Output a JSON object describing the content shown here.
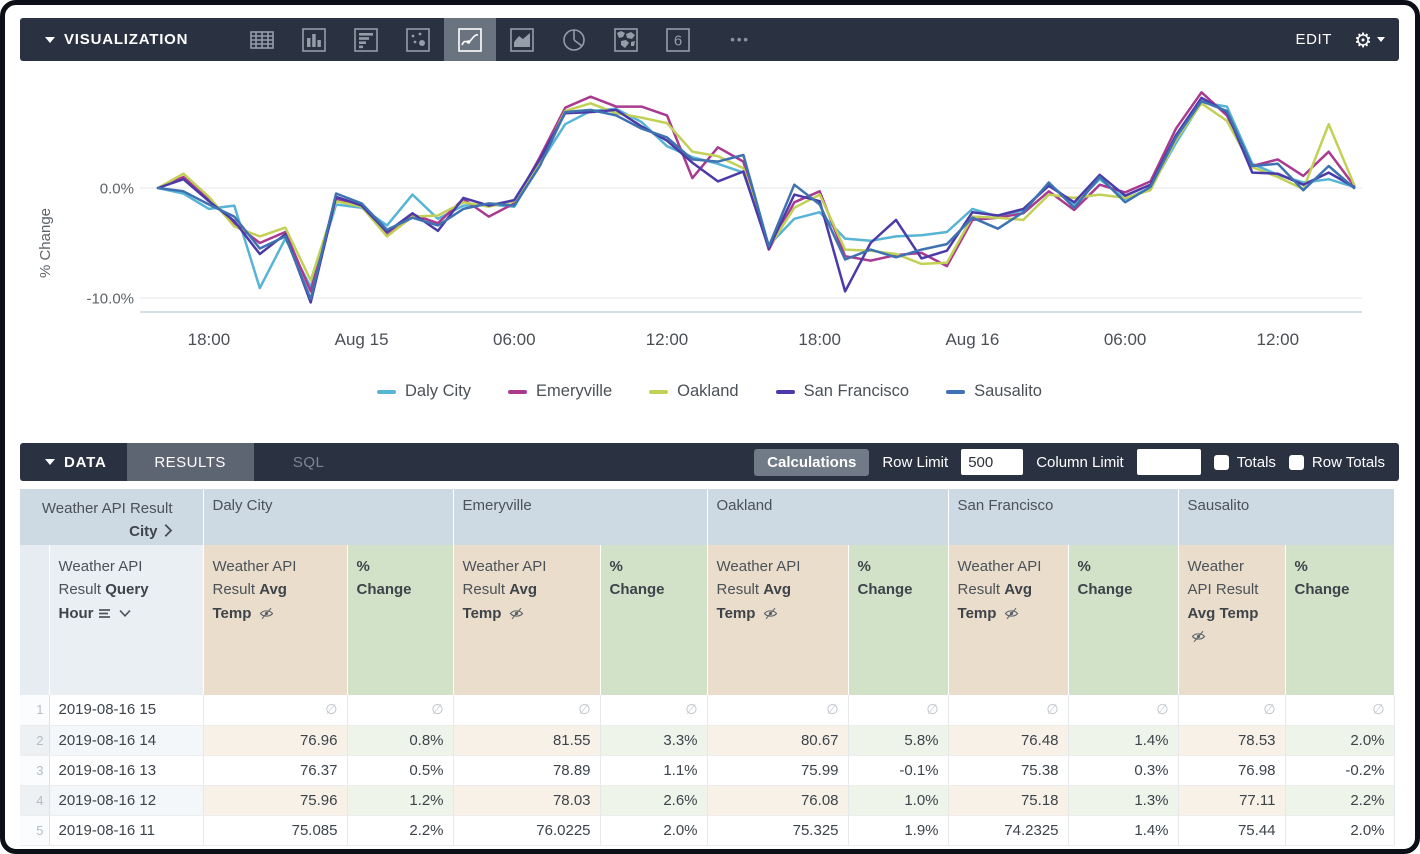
{
  "visualization_bar": {
    "title": "VISUALIZATION",
    "icons": [
      {
        "name": "table",
        "selected": false
      },
      {
        "name": "column",
        "selected": false
      },
      {
        "name": "bar",
        "selected": false
      },
      {
        "name": "scatter",
        "selected": false
      },
      {
        "name": "line",
        "selected": true
      },
      {
        "name": "area",
        "selected": false
      },
      {
        "name": "pie",
        "selected": false
      },
      {
        "name": "map",
        "selected": false
      },
      {
        "name": "single-value",
        "selected": false,
        "glyph": "6"
      }
    ],
    "more_label": "•••",
    "edit_label": "EDIT"
  },
  "chart_data": {
    "type": "line",
    "ylabel": "% Change",
    "ylim": [
      -11.5,
      9.5
    ],
    "grid": "horizontal",
    "legend_position": "bottom",
    "yticks": [
      {
        "value": 0,
        "label": "0.0%"
      },
      {
        "value": -10,
        "label": "-10.0%"
      }
    ],
    "xticks": [
      {
        "index": 2,
        "label": "18:00"
      },
      {
        "index": 8,
        "label": "Aug 15"
      },
      {
        "index": 14,
        "label": "06:00"
      },
      {
        "index": 20,
        "label": "12:00"
      },
      {
        "index": 26,
        "label": "18:00"
      },
      {
        "index": 32,
        "label": "Aug 16"
      },
      {
        "index": 38,
        "label": "06:00"
      },
      {
        "index": 44,
        "label": "12:00"
      }
    ],
    "series": [
      {
        "name": "Daly City",
        "color": "#57b4d4",
        "values": [
          0.0,
          -0.5,
          -1.9,
          -1.6,
          -9.1,
          -4.6,
          -9.0,
          -1.5,
          -1.8,
          -3.4,
          -0.6,
          -2.8,
          -1.6,
          -1.5,
          -1.7,
          2.2,
          5.8,
          7.0,
          7.2,
          6.0,
          3.8,
          2.8,
          2.2,
          1.4,
          -5.2,
          -2.8,
          -2.2,
          -4.6,
          -4.8,
          -4.4,
          -4.3,
          -4.0,
          -1.9,
          -2.6,
          -2.0,
          0.4,
          -1.5,
          0.8,
          -1.0,
          0.0,
          4.1,
          7.8,
          7.4,
          2.2,
          1.2,
          0.5,
          0.8,
          0.1
        ]
      },
      {
        "name": "Emeryville",
        "color": "#a93a90",
        "values": [
          0.0,
          1.0,
          -1.0,
          -3.2,
          -5.0,
          -4.0,
          -9.4,
          -1.0,
          -1.5,
          -4.3,
          -2.4,
          -3.2,
          -1.0,
          -2.6,
          -1.4,
          2.8,
          7.3,
          8.3,
          7.4,
          7.4,
          6.6,
          0.9,
          3.7,
          2.4,
          -5.6,
          -1.3,
          -0.3,
          -6.2,
          -6.6,
          -6.1,
          -5.9,
          -7.1,
          -2.9,
          -2.7,
          -2.3,
          -0.3,
          -2.0,
          0.3,
          -0.4,
          0.6,
          5.4,
          8.7,
          6.6,
          2.0,
          2.6,
          1.1,
          3.3,
          0.2
        ]
      },
      {
        "name": "Oakland",
        "color": "#c2d156",
        "values": [
          0.0,
          1.3,
          -0.8,
          -3.5,
          -4.4,
          -3.6,
          -8.4,
          -1.2,
          -1.7,
          -4.4,
          -2.6,
          -2.5,
          -1.3,
          -1.7,
          -1.2,
          2.4,
          7.0,
          7.7,
          6.8,
          6.4,
          5.9,
          3.3,
          2.9,
          1.8,
          -5.4,
          -1.8,
          -0.6,
          -5.6,
          -5.7,
          -6.0,
          -6.9,
          -6.8,
          -2.6,
          -2.7,
          -2.9,
          -0.6,
          -0.9,
          -0.6,
          -0.9,
          -0.2,
          4.4,
          7.7,
          6.1,
          1.9,
          1.0,
          -0.1,
          5.8,
          0.3
        ]
      },
      {
        "name": "San Francisco",
        "color": "#4b3aa8",
        "values": [
          0.0,
          0.8,
          -1.2,
          -3.0,
          -6.0,
          -4.2,
          -10.4,
          -0.8,
          -1.6,
          -4.0,
          -2.3,
          -3.9,
          -0.9,
          -1.6,
          -1.1,
          2.6,
          6.8,
          6.9,
          7.1,
          5.6,
          4.3,
          2.3,
          0.6,
          1.5,
          -5.5,
          -0.6,
          -1.2,
          -9.4,
          -5.0,
          -2.9,
          -6.4,
          -5.7,
          -2.2,
          -2.5,
          -1.9,
          0.2,
          -1.3,
          1.2,
          -0.7,
          0.3,
          4.8,
          8.2,
          6.9,
          1.4,
          1.3,
          0.3,
          1.4,
          0.1
        ]
      },
      {
        "name": "Sausalito",
        "color": "#3e72b0",
        "values": [
          0.0,
          -0.3,
          -1.5,
          -2.6,
          -5.5,
          -4.4,
          -10.1,
          -0.5,
          -1.4,
          -3.8,
          -2.7,
          -3.4,
          -1.9,
          -1.4,
          -1.6,
          2.0,
          6.9,
          7.1,
          6.6,
          5.4,
          4.6,
          2.6,
          2.4,
          3.0,
          -5.3,
          0.3,
          -1.5,
          -6.5,
          -5.6,
          -6.3,
          -5.6,
          -5.1,
          -2.7,
          -3.7,
          -2.2,
          0.5,
          -1.8,
          1.0,
          -1.3,
          0.1,
          4.6,
          7.9,
          7.0,
          2.0,
          2.2,
          -0.2,
          2.0,
          0.0
        ]
      }
    ]
  },
  "data_bar": {
    "title": "DATA",
    "tabs": [
      "RESULTS",
      "SQL"
    ],
    "active_tab": "RESULTS",
    "calculations_label": "Calculations",
    "row_limit_label": "Row Limit",
    "row_limit_value": "500",
    "column_limit_label": "Column Limit",
    "column_limit_value": "",
    "totals_label": "Totals",
    "totals_checked": false,
    "row_totals_label": "Row Totals",
    "row_totals_checked": false
  },
  "table": {
    "null_symbol": "∅",
    "pivot_header": {
      "dimension_prefix": "Weather API Result",
      "dimension_bold": "City",
      "cities": [
        "Daly City",
        "Emeryville",
        "Oakland",
        "San Francisco",
        "Sausalito"
      ]
    },
    "column_header": {
      "hour_prefix": "Weather API Result ",
      "hour_bold": "Query Hour",
      "measure_prefix": "Weather API Result ",
      "measure_bold": "Avg Temp",
      "pct_line1": "%",
      "pct_line2": "Change"
    },
    "rows": [
      {
        "num": "1",
        "hour": "2019-08-16 15",
        "cells": [
          null,
          null,
          null,
          null,
          null,
          null,
          null,
          null,
          null,
          null
        ]
      },
      {
        "num": "2",
        "hour": "2019-08-16 14",
        "cells": [
          "76.96",
          "0.8%",
          "81.55",
          "3.3%",
          "80.67",
          "5.8%",
          "76.48",
          "1.4%",
          "78.53",
          "2.0%"
        ]
      },
      {
        "num": "3",
        "hour": "2019-08-16 13",
        "cells": [
          "76.37",
          "0.5%",
          "78.89",
          "1.1%",
          "75.99",
          "-0.1%",
          "75.38",
          "0.3%",
          "76.98",
          "-0.2%"
        ]
      },
      {
        "num": "4",
        "hour": "2019-08-16 12",
        "cells": [
          "75.96",
          "1.2%",
          "78.03",
          "2.6%",
          "76.08",
          "1.0%",
          "75.18",
          "1.3%",
          "77.11",
          "2.2%"
        ]
      },
      {
        "num": "5",
        "hour": "2019-08-16 11",
        "cells": [
          "75.085",
          "2.2%",
          "76.0225",
          "2.0%",
          "75.325",
          "1.9%",
          "74.2325",
          "1.4%",
          "75.44",
          "2.0%"
        ]
      }
    ]
  }
}
